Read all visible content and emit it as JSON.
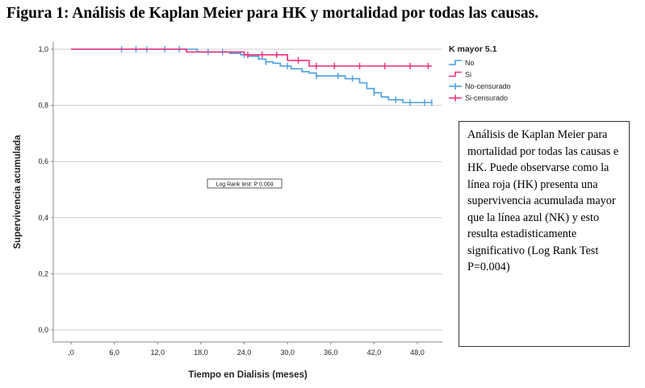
{
  "title": "Figura 1: Análisis de Kaplan Meier para HK y mortalidad por todas las causas.",
  "description": "Análisis de Kaplan Meier para mortalidad por todas las causas e HK. Puede observarse como la línea roja (HK) presenta una supervivencia acumulada mayor que la línea azul (NK) y esto resulta estadisticamente significativo (Log Rank Test P=0.004)",
  "chart_data": {
    "type": "line",
    "step": true,
    "xlabel": "Tiempo en Dialisis (meses)",
    "ylabel": "Supervivencia acumulada",
    "xlim": [
      -6,
      54
    ],
    "ylim": [
      0,
      1.05
    ],
    "xticks": [
      ",0",
      "6,0",
      "12,0",
      "18,0",
      "24,0",
      "30,0",
      "36,0",
      "42,0",
      "48,0"
    ],
    "xtick_values": [
      0,
      6,
      12,
      18,
      24,
      30,
      36,
      42,
      48
    ],
    "yticks": [
      "0,0",
      "0,2",
      "0,4",
      "0,6",
      "0,8",
      "1,0"
    ],
    "ytick_values": [
      0,
      0.2,
      0.4,
      0.6,
      0.8,
      1.0
    ],
    "grid": "horizontal",
    "legend_title": "K mayor 5.1",
    "legend_position": "top-right",
    "legend": [
      "No",
      "Si",
      "No-censurado",
      "Si-censurado"
    ],
    "annotation": "Log Rank test: P 0.004",
    "series": [
      {
        "name": "No",
        "color": "#4a9ee0",
        "x": [
          0,
          17.5,
          22,
          23.5,
          24.5,
          26,
          27,
          28,
          29,
          30.5,
          32,
          33,
          34,
          36,
          38,
          40,
          41,
          42,
          43,
          44,
          46,
          50
        ],
        "y": [
          1.0,
          0.99,
          0.985,
          0.98,
          0.975,
          0.965,
          0.955,
          0.95,
          0.94,
          0.93,
          0.92,
          0.915,
          0.905,
          0.905,
          0.895,
          0.88,
          0.86,
          0.845,
          0.83,
          0.82,
          0.81,
          0.81
        ],
        "censored_x": [
          7,
          9,
          10.5,
          13,
          15,
          19,
          21,
          24,
          27,
          30,
          34,
          37,
          39,
          42,
          45,
          47,
          49,
          50
        ]
      },
      {
        "name": "Si",
        "color": "#ee2f7b",
        "x": [
          0,
          16,
          24,
          28.5,
          30,
          33,
          50
        ],
        "y": [
          1.0,
          0.99,
          0.98,
          0.98,
          0.96,
          0.94,
          0.94
        ],
        "censored_x": [
          24.5,
          26.5,
          28.5,
          31.5,
          34,
          36.5,
          40,
          43.5,
          47,
          49.5
        ]
      }
    ]
  }
}
